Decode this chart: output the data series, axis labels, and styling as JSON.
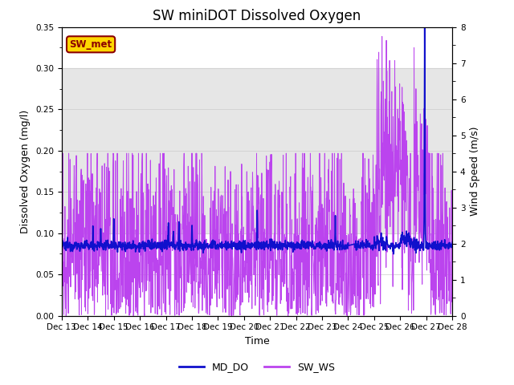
{
  "title": "SW miniDOT Dissolved Oxygen",
  "xlabel": "Time",
  "ylabel_left": "Dissolved Oxygen (mg/l)",
  "ylabel_right": "Wind Speed (m/s)",
  "ylim_left": [
    0.0,
    0.35
  ],
  "ylim_right": [
    0.0,
    8.0
  ],
  "yticks_left": [
    0.0,
    0.05,
    0.1,
    0.15,
    0.2,
    0.25,
    0.3,
    0.35
  ],
  "yticks_right": [
    0.0,
    1.0,
    2.0,
    3.0,
    4.0,
    5.0,
    6.0,
    7.0,
    8.0
  ],
  "xtick_labels": [
    "Dec 13",
    "Dec 14",
    "Dec 15",
    "Dec 16",
    "Dec 17",
    "Dec 18",
    "Dec 19",
    "Dec 20",
    "Dec 21",
    "Dec 22",
    "Dec 23",
    "Dec 24",
    "Dec 25",
    "Dec 26",
    "Dec 27",
    "Dec 28"
  ],
  "md_do_color": "#1010cc",
  "sw_ws_color": "#bb44ee",
  "legend_md_do": "MD_DO",
  "legend_sw_ws": "SW_WS",
  "station_label": "SW_met",
  "station_label_color": "#8b0000",
  "station_label_bg": "#ffd700",
  "background_gray_band": [
    0.1,
    0.3
  ],
  "title_fontsize": 12,
  "axis_label_fontsize": 9,
  "tick_label_fontsize": 7.5
}
